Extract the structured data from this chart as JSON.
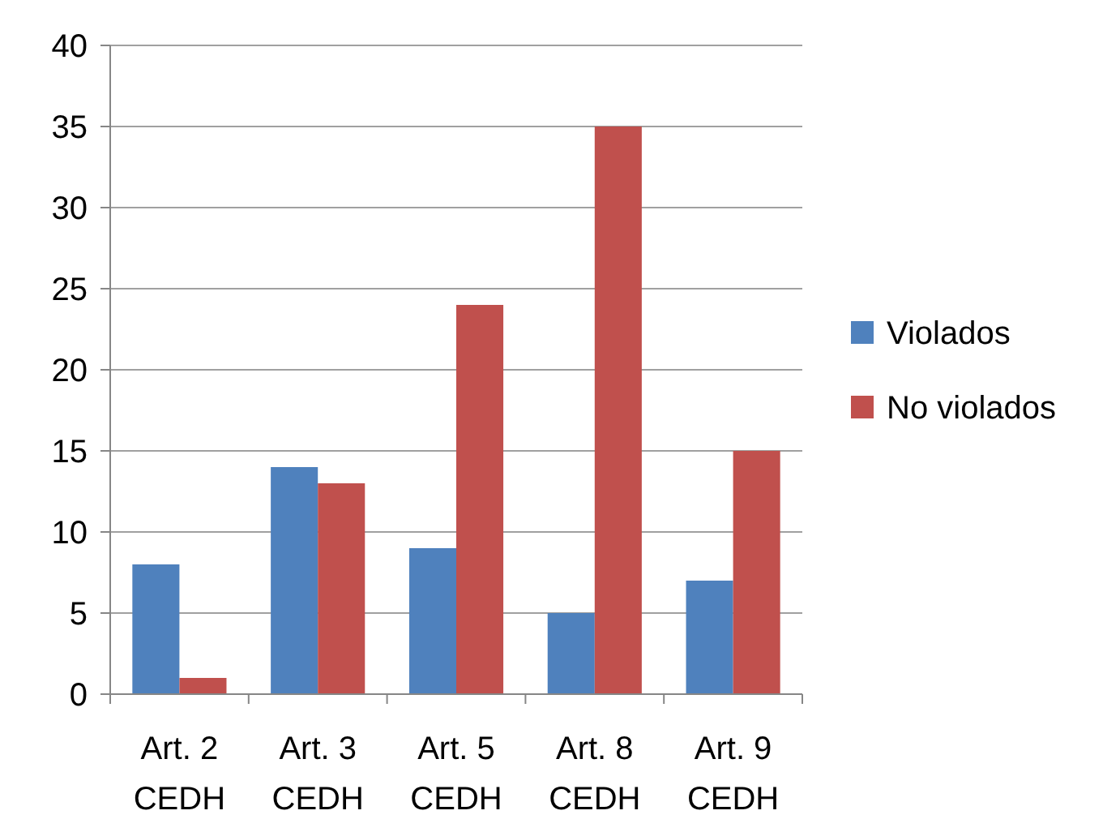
{
  "chart_data": {
    "type": "bar",
    "categories": [
      "Art. 2 CEDH",
      "Art. 3 CEDH",
      "Art. 5 CEDH",
      "Art. 8 CEDH",
      "Art. 9 CEDH"
    ],
    "series": [
      {
        "name": "Violados",
        "color": "#4f81bd",
        "values": [
          8,
          14,
          9,
          5,
          7
        ]
      },
      {
        "name": "No violados",
        "color": "#c0504d",
        "values": [
          1,
          13,
          24,
          35,
          15
        ]
      }
    ],
    "ylim": [
      0,
      40
    ],
    "yticks": [
      0,
      5,
      10,
      15,
      20,
      25,
      30,
      35,
      40
    ],
    "grid": "y",
    "legend": "right"
  }
}
